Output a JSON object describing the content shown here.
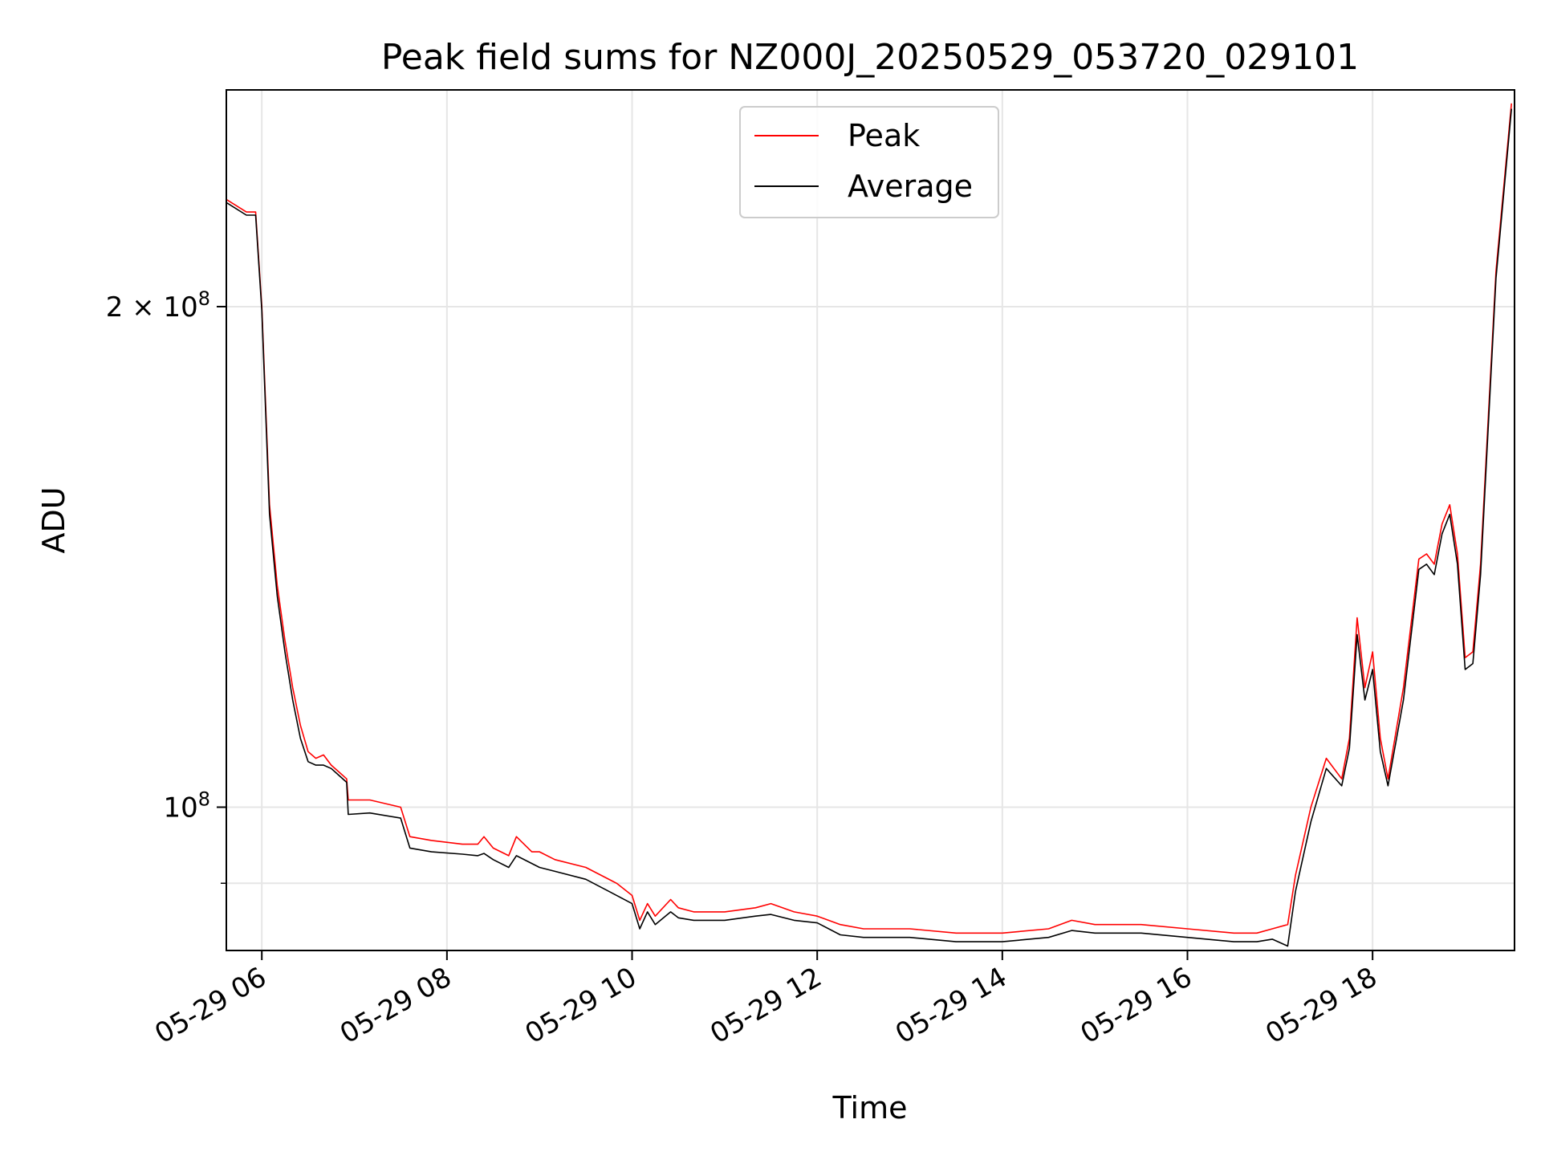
{
  "chart_data": {
    "type": "line",
    "title": "Peak field sums for NZ000J_20250529_053720_029101",
    "xlabel": "Time",
    "ylabel": "ADU",
    "x_scale": "time",
    "y_scale": "log",
    "xlim": [
      "2025-05-29 05:37",
      "2025-05-29 19:32"
    ],
    "ylim": [
      82000000,
      270000000
    ],
    "x_ticks": [
      {
        "t": "2025-05-29 06:00",
        "label": "05-29 06"
      },
      {
        "t": "2025-05-29 08:00",
        "label": "05-29 08"
      },
      {
        "t": "2025-05-29 10:00",
        "label": "05-29 10"
      },
      {
        "t": "2025-05-29 12:00",
        "label": "05-29 12"
      },
      {
        "t": "2025-05-29 14:00",
        "label": "05-29 14"
      },
      {
        "t": "2025-05-29 16:00",
        "label": "05-29 16"
      },
      {
        "t": "2025-05-29 18:00",
        "label": "05-29 18"
      }
    ],
    "y_major_ticks": [
      {
        "value": 100000000,
        "base": "10",
        "exp": "8",
        "label": "10^8"
      },
      {
        "value": 200000000,
        "base": "2 × 10",
        "exp": "8",
        "label": "2 × 10^8"
      }
    ],
    "y_minor_ticks": [
      90000000,
      300000000
    ],
    "grid": true,
    "legend_position": "upper center",
    "series": [
      {
        "name": "Peak",
        "color": "#ff0000",
        "x": [
          "05:37",
          "05:50",
          "05:56",
          "06:00",
          "06:05",
          "06:10",
          "06:15",
          "06:20",
          "06:25",
          "06:30",
          "06:35",
          "06:40",
          "06:45",
          "06:50",
          "06:55",
          "06:56",
          "07:10",
          "07:30",
          "07:36",
          "07:50",
          "08:10",
          "08:20",
          "08:24",
          "08:30",
          "08:40",
          "08:45",
          "08:55",
          "09:00",
          "09:10",
          "09:30",
          "09:50",
          "10:00",
          "10:05",
          "10:10",
          "10:15",
          "10:25",
          "10:30",
          "10:40",
          "11:00",
          "11:20",
          "11:30",
          "11:45",
          "12:00",
          "12:15",
          "12:30",
          "13:00",
          "13:30",
          "14:00",
          "14:30",
          "14:45",
          "15:00",
          "15:30",
          "16:00",
          "16:30",
          "16:45",
          "16:55",
          "17:05",
          "17:10",
          "17:20",
          "17:30",
          "17:40",
          "17:45",
          "17:50",
          "17:55",
          "18:00",
          "18:05",
          "18:10",
          "18:20",
          "18:30",
          "18:35",
          "18:40",
          "18:45",
          "18:50",
          "18:55",
          "19:00",
          "19:05",
          "19:10",
          "19:20",
          "19:30"
        ],
        "y": [
          232000000,
          228000000,
          228000000,
          200000000,
          152000000,
          136000000,
          126000000,
          118000000,
          112000000,
          108000000,
          107000000,
          107500000,
          106000000,
          105000000,
          104000000,
          101000000,
          101000000,
          100000000,
          96000000,
          95500000,
          95000000,
          95000000,
          96000000,
          94500000,
          93500000,
          96000000,
          94000000,
          94000000,
          93000000,
          92000000,
          90000000,
          88500000,
          85500000,
          87500000,
          86000000,
          88000000,
          87000000,
          86500000,
          86500000,
          87000000,
          87500000,
          86500000,
          86000000,
          85000000,
          84500000,
          84500000,
          84000000,
          84000000,
          84500000,
          85500000,
          85000000,
          85000000,
          84500000,
          84000000,
          84000000,
          84500000,
          85000000,
          91000000,
          100000000,
          107000000,
          104000000,
          110000000,
          130000000,
          118000000,
          124000000,
          110000000,
          104000000,
          118000000,
          141000000,
          142000000,
          140000000,
          148000000,
          152000000,
          142000000,
          123000000,
          124000000,
          140000000,
          210000000,
          265000000
        ]
      },
      {
        "name": "Average",
        "color": "#000000",
        "x": [
          "05:37",
          "05:50",
          "05:56",
          "06:00",
          "06:05",
          "06:10",
          "06:15",
          "06:20",
          "06:25",
          "06:30",
          "06:35",
          "06:40",
          "06:45",
          "06:50",
          "06:55",
          "06:56",
          "07:10",
          "07:30",
          "07:36",
          "07:50",
          "08:10",
          "08:20",
          "08:24",
          "08:30",
          "08:40",
          "08:45",
          "08:55",
          "09:00",
          "09:10",
          "09:30",
          "09:50",
          "10:00",
          "10:05",
          "10:10",
          "10:15",
          "10:25",
          "10:30",
          "10:40",
          "11:00",
          "11:20",
          "11:30",
          "11:45",
          "12:00",
          "12:15",
          "12:30",
          "13:00",
          "13:30",
          "14:00",
          "14:30",
          "14:45",
          "15:00",
          "15:30",
          "16:00",
          "16:30",
          "16:45",
          "16:55",
          "17:05",
          "17:10",
          "17:20",
          "17:30",
          "17:40",
          "17:45",
          "17:50",
          "17:55",
          "18:00",
          "18:05",
          "18:10",
          "18:20",
          "18:30",
          "18:35",
          "18:40",
          "18:45",
          "18:50",
          "18:55",
          "19:00",
          "19:05",
          "19:10",
          "19:20",
          "19:30"
        ],
        "y": [
          231000000,
          227000000,
          227000000,
          199000000,
          150000000,
          134000000,
          124000000,
          116000000,
          110000000,
          106500000,
          106000000,
          106000000,
          105500000,
          104500000,
          103500000,
          99000000,
          99200000,
          98500000,
          94500000,
          94000000,
          93700000,
          93500000,
          93800000,
          93000000,
          92000000,
          93500000,
          92500000,
          92000000,
          91500000,
          90500000,
          88500000,
          87500000,
          84500000,
          86500000,
          85000000,
          86500000,
          85800000,
          85500000,
          85500000,
          86000000,
          86200000,
          85500000,
          85200000,
          83800000,
          83500000,
          83500000,
          83000000,
          83000000,
          83500000,
          84300000,
          84000000,
          84000000,
          83500000,
          83000000,
          83000000,
          83300000,
          82500000,
          89000000,
          98000000,
          105500000,
          103000000,
          108500000,
          127000000,
          116000000,
          121000000,
          108000000,
          103000000,
          116000000,
          139000000,
          140000000,
          138000000,
          146000000,
          150000000,
          140000000,
          121000000,
          122000000,
          138000000,
          208000000,
          263000000
        ]
      }
    ]
  }
}
